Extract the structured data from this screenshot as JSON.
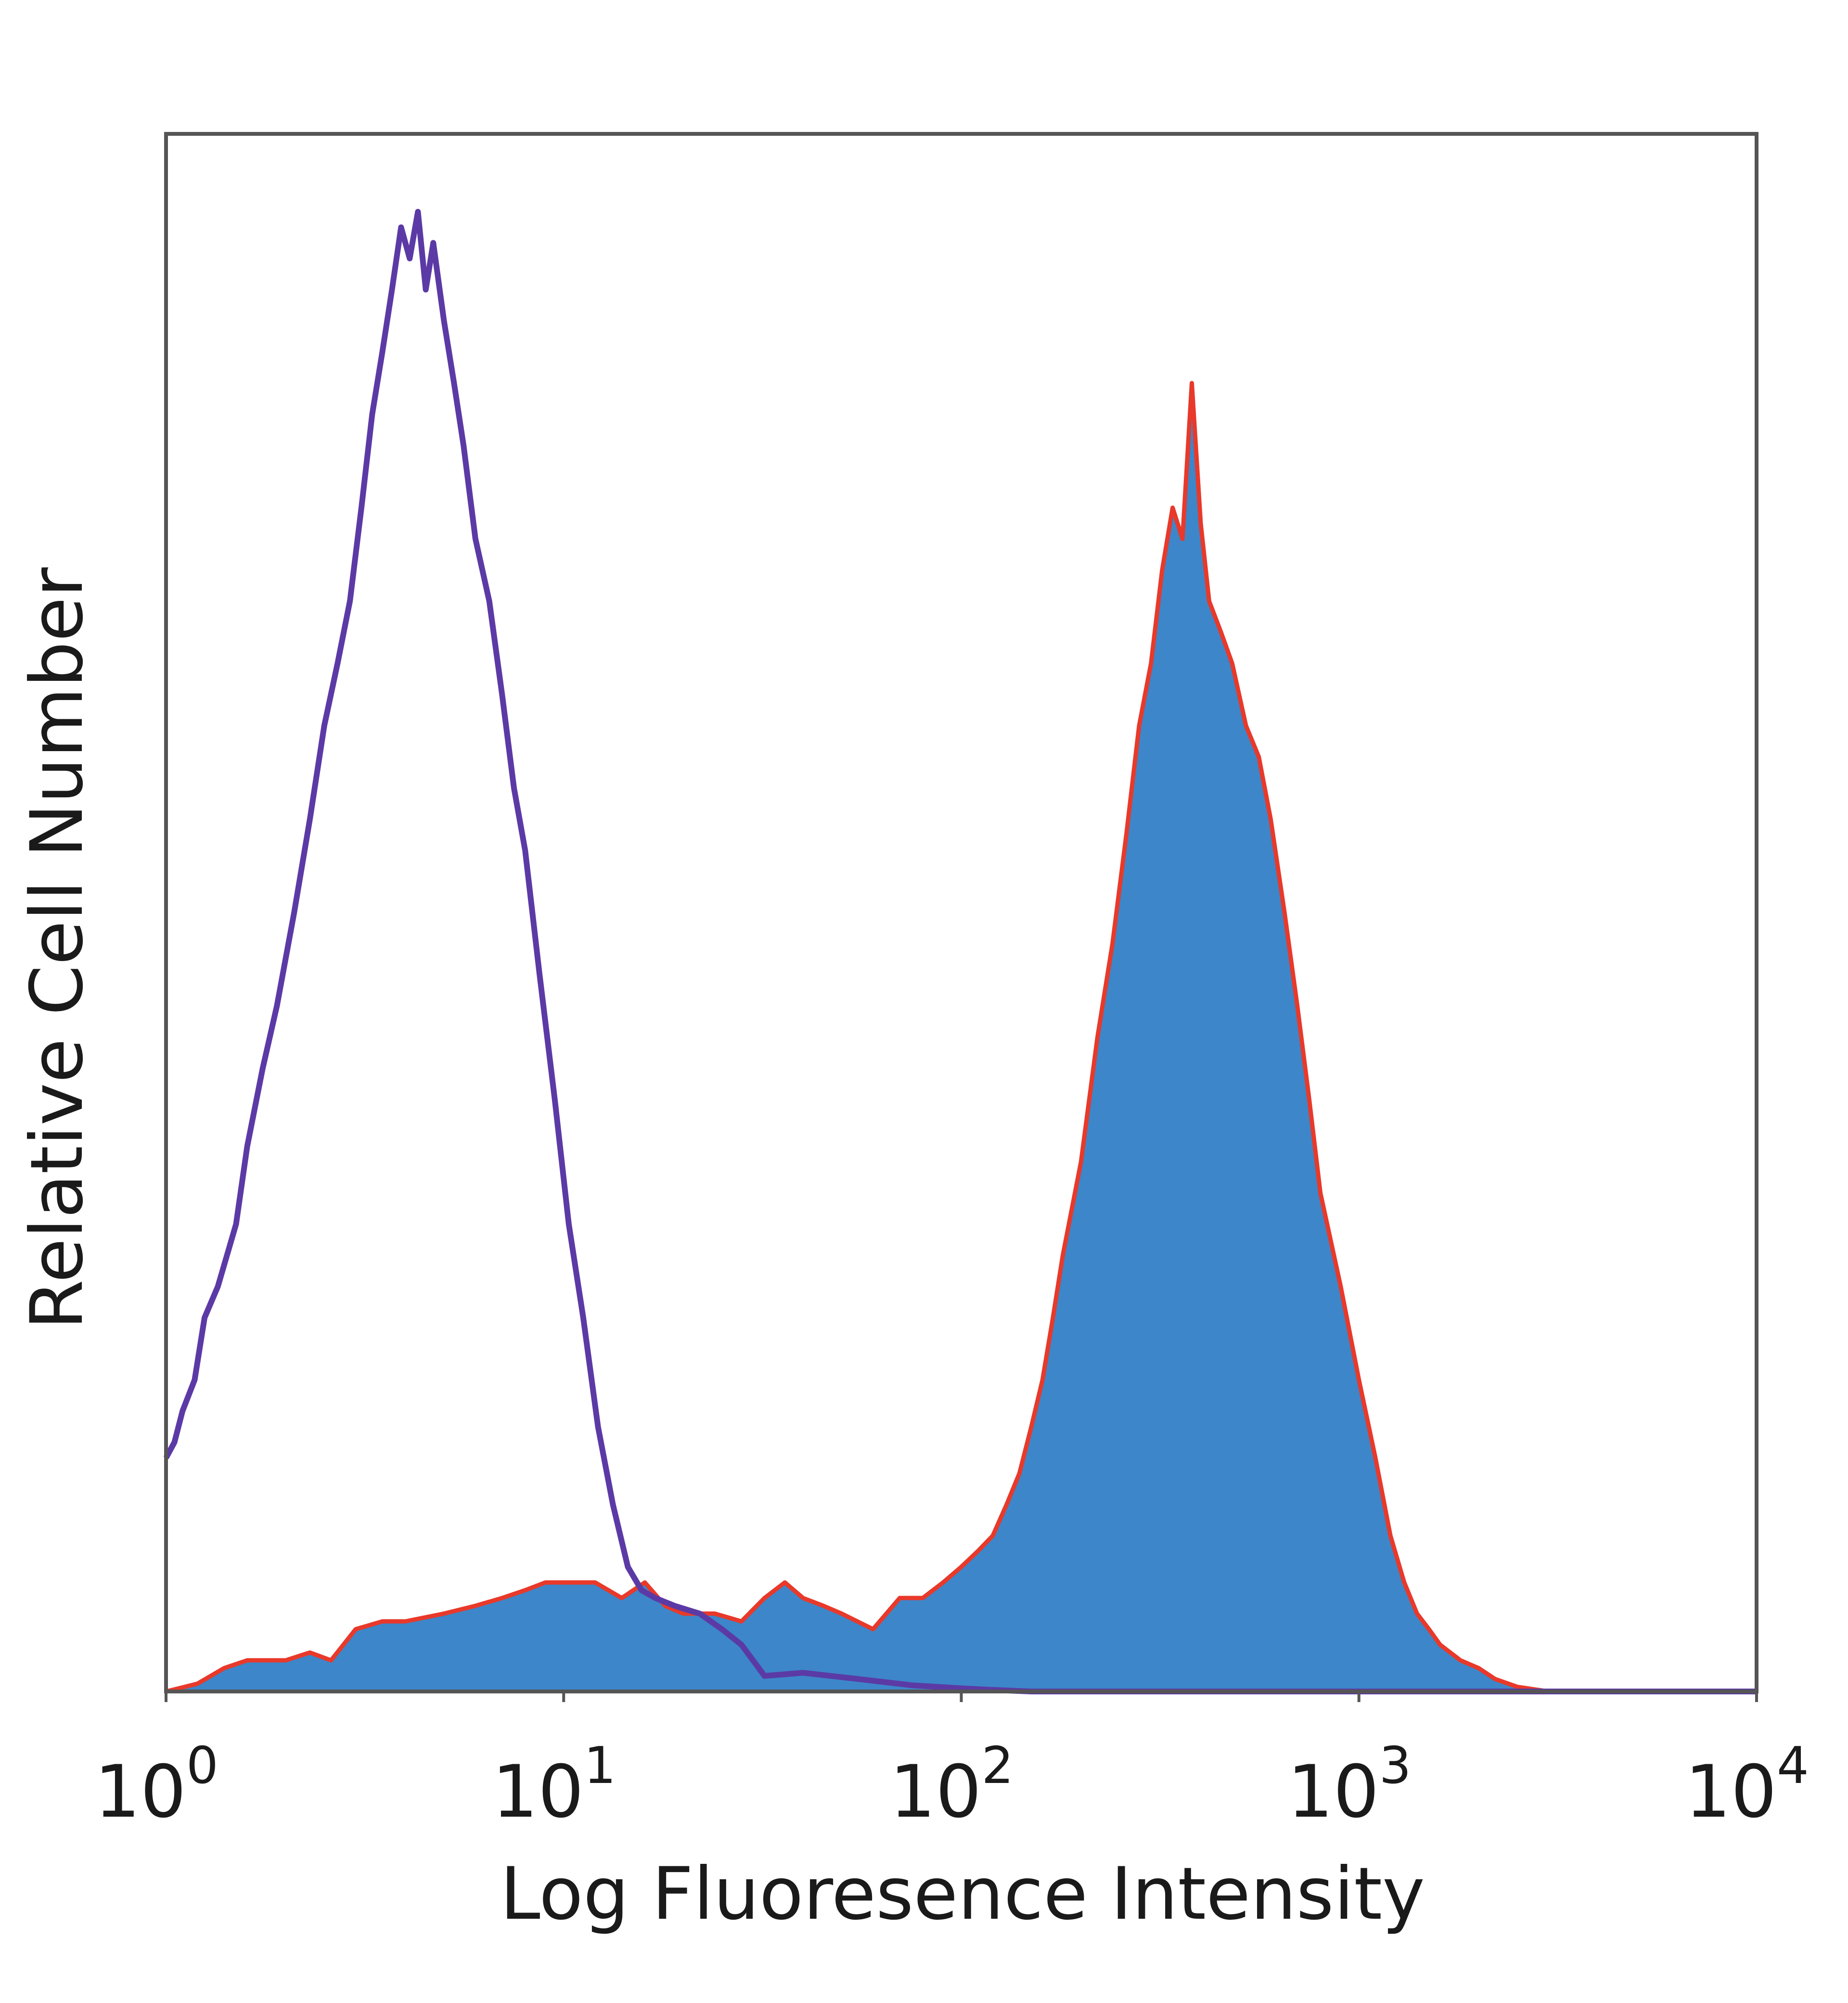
{
  "chart_data": {
    "type": "area",
    "title": "",
    "xlabel": "Log Fluoresence Intensity",
    "ylabel": "Relative Cell Number",
    "x_scale": "log",
    "xlim": [
      1,
      10000
    ],
    "ylim": [
      0,
      1
    ],
    "x_ticks": [
      {
        "value": 1,
        "base": "10",
        "exp": "0"
      },
      {
        "value": 10,
        "base": "10",
        "exp": "1"
      },
      {
        "value": 100,
        "base": "10",
        "exp": "2"
      },
      {
        "value": 1000,
        "base": "10",
        "exp": "3"
      },
      {
        "value": 10000,
        "base": "10",
        "exp": "4"
      }
    ],
    "grid": false,
    "legend": "none",
    "series": [
      {
        "style": "outline",
        "color": "#5b3aa6",
        "x": [
          1.0,
          1.05,
          1.1,
          1.18,
          1.25,
          1.35,
          1.5,
          1.6,
          1.75,
          1.9,
          2.1,
          2.3,
          2.5,
          2.7,
          2.9,
          3.1,
          3.3,
          3.5,
          3.7,
          3.9,
          4.1,
          4.3,
          4.5,
          4.7,
          5.0,
          5.3,
          5.6,
          6.0,
          6.5,
          7.0,
          7.5,
          8.0,
          8.7,
          9.5,
          10.3,
          11.2,
          12.2,
          13.3,
          14.5,
          15.7,
          17.0,
          19.0,
          22.0,
          25.0,
          28.0,
          32.0,
          40.0,
          55.0,
          75.0,
          100.0,
          120.0,
          150.0,
          200.0,
          500.0,
          10000.0
        ],
        "values": [
          0.15,
          0.16,
          0.18,
          0.2,
          0.24,
          0.26,
          0.3,
          0.35,
          0.4,
          0.44,
          0.5,
          0.56,
          0.62,
          0.66,
          0.7,
          0.76,
          0.82,
          0.86,
          0.9,
          0.94,
          0.92,
          0.95,
          0.9,
          0.93,
          0.88,
          0.84,
          0.8,
          0.74,
          0.7,
          0.64,
          0.58,
          0.54,
          0.46,
          0.38,
          0.3,
          0.24,
          0.17,
          0.12,
          0.08,
          0.065,
          0.06,
          0.055,
          0.05,
          0.04,
          0.03,
          0.01,
          0.012,
          0.008,
          0.004,
          0.002,
          0.001,
          0.0,
          0.0,
          0.0,
          0.0
        ]
      },
      {
        "style": "filled",
        "color": "#3d86c9",
        "edge_color": "#e8392a",
        "x": [
          1.0,
          1.2,
          1.4,
          1.6,
          1.8,
          2.0,
          2.3,
          2.6,
          3.0,
          3.5,
          4.0,
          5.0,
          6.0,
          7.0,
          8.0,
          9.0,
          10.0,
          12.0,
          14.0,
          16.0,
          18.0,
          20.0,
          24.0,
          28.0,
          32.0,
          36.0,
          40.0,
          45.0,
          50.0,
          60.0,
          70.0,
          80.0,
          90.0,
          100.0,
          110.0,
          120.0,
          130.0,
          140.0,
          150.0,
          160.0,
          170.0,
          180.0,
          200.0,
          220.0,
          240.0,
          260.0,
          280.0,
          300.0,
          320.0,
          340.0,
          360.0,
          380.0,
          400.0,
          420.0,
          450.0,
          480.0,
          520.0,
          560.0,
          600.0,
          650.0,
          700.0,
          750.0,
          800.0,
          900.0,
          1000.0,
          1100.0,
          1200.0,
          1300.0,
          1400.0,
          1500.0,
          1600.0,
          1800.0,
          2000.0,
          2200.0,
          2500.0,
          3000.0,
          10000.0
        ],
        "values": [
          0.0,
          0.005,
          0.015,
          0.02,
          0.02,
          0.02,
          0.025,
          0.02,
          0.04,
          0.045,
          0.045,
          0.05,
          0.055,
          0.06,
          0.065,
          0.07,
          0.07,
          0.07,
          0.06,
          0.07,
          0.055,
          0.05,
          0.05,
          0.045,
          0.06,
          0.07,
          0.06,
          0.055,
          0.05,
          0.04,
          0.06,
          0.06,
          0.07,
          0.08,
          0.09,
          0.1,
          0.12,
          0.14,
          0.17,
          0.2,
          0.24,
          0.28,
          0.34,
          0.42,
          0.48,
          0.55,
          0.62,
          0.66,
          0.72,
          0.76,
          0.74,
          0.84,
          0.75,
          0.7,
          0.68,
          0.66,
          0.62,
          0.6,
          0.56,
          0.5,
          0.44,
          0.38,
          0.32,
          0.26,
          0.2,
          0.15,
          0.1,
          0.07,
          0.05,
          0.04,
          0.03,
          0.02,
          0.015,
          0.008,
          0.003,
          0.0,
          0.0
        ]
      }
    ]
  }
}
